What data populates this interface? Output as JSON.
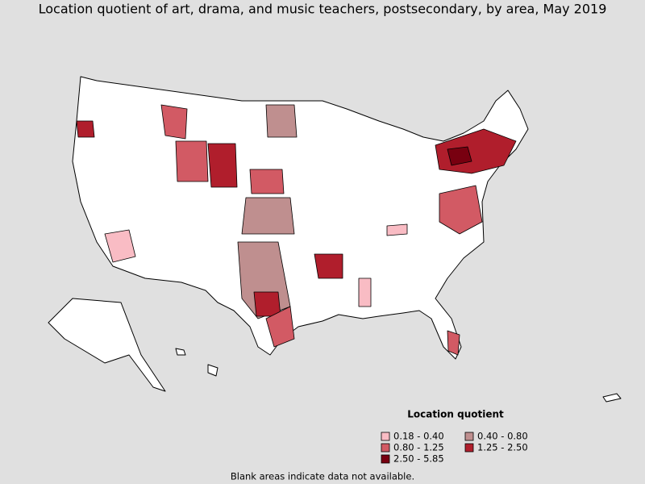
{
  "title": "Location quotient of art, drama, and music teachers, postsecondary, by area, May 2019",
  "legend": {
    "title": "Location quotient",
    "items": [
      {
        "label": "0.18 - 0.40",
        "color": "#f9bcc4"
      },
      {
        "label": "0.40 - 0.80",
        "color": "#bf8f8f"
      },
      {
        "label": "0.80 - 1.25",
        "color": "#d25a64"
      },
      {
        "label": "1.25 - 2.50",
        "color": "#b01e2c"
      },
      {
        "label": "2.50 - 5.85",
        "color": "#780010"
      }
    ]
  },
  "note": "Blank areas indicate data not available."
}
